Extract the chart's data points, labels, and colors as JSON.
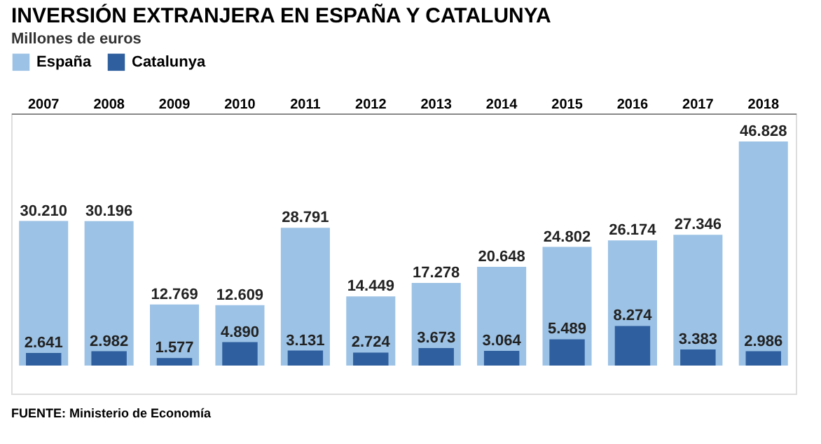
{
  "chart_data": {
    "type": "bar",
    "title": "INVERSIÓN EXTRANJERA EN ESPAÑA Y CATALUNYA",
    "subtitle": "Millones de euros",
    "categories": [
      "2007",
      "2008",
      "2009",
      "2010",
      "2011",
      "2012",
      "2013",
      "2014",
      "2015",
      "2016",
      "2017",
      "2018"
    ],
    "series": [
      {
        "name": "España",
        "color": "#9cc2e5",
        "values": [
          30210,
          30196,
          12769,
          12609,
          28791,
          14449,
          17278,
          20648,
          24802,
          26174,
          27346,
          46828
        ],
        "value_labels": [
          "30.210",
          "30.196",
          "12.769",
          "12.609",
          "28.791",
          "14.449",
          "17.278",
          "20.648",
          "24.802",
          "26.174",
          "27.346",
          "46.828"
        ]
      },
      {
        "name": "Catalunya",
        "color": "#2f5f9e",
        "values": [
          2641,
          2982,
          1577,
          4890,
          3131,
          2724,
          3673,
          3064,
          5489,
          8274,
          3383,
          2986
        ],
        "value_labels": [
          "2.641",
          "2.982",
          "1.577",
          "4.890",
          "3.131",
          "2.724",
          "3.673",
          "3.064",
          "5.489",
          "8.274",
          "3.383",
          "2.986"
        ]
      }
    ],
    "legend": "top left",
    "grid": false,
    "annotations": [
      "FUENTE: Ministerio de Economía"
    ]
  }
}
